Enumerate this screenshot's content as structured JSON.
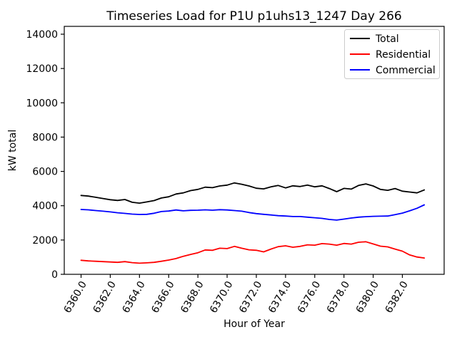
{
  "chart_data": {
    "type": "line",
    "title": "Timeseries Load for P1U p1uhs13_1247  Day 266",
    "xlabel": "Hour of Year",
    "ylabel": "kW total",
    "grid": false,
    "legend_position": "upper right",
    "xlim": [
      6358.85,
      6384.86
    ],
    "ylim": [
      0,
      14457
    ],
    "x_tick_values": [
      6360,
      6362,
      6364,
      6366,
      6368,
      6370,
      6372,
      6374,
      6376,
      6378,
      6380,
      6382
    ],
    "x_tick_labels": [
      "6360.0",
      "6362.0",
      "6364.0",
      "6366.0",
      "6368.0",
      "6370.0",
      "6372.0",
      "6374.0",
      "6376.0",
      "6378.0",
      "6380.0",
      "6382.0"
    ],
    "y_tick_values": [
      0,
      2000,
      4000,
      6000,
      8000,
      10000,
      12000,
      14000
    ],
    "y_tick_labels": [
      "0",
      "2000",
      "4000",
      "6000",
      "8000",
      "10000",
      "12000",
      "14000"
    ],
    "x": [
      6360.0,
      6360.5,
      6361.0,
      6361.5,
      6362.0,
      6362.5,
      6363.0,
      6363.5,
      6364.0,
      6364.5,
      6365.0,
      6365.5,
      6366.0,
      6366.5,
      6367.0,
      6367.5,
      6368.0,
      6368.5,
      6369.0,
      6369.5,
      6370.0,
      6370.5,
      6371.0,
      6371.5,
      6372.0,
      6372.5,
      6373.0,
      6373.5,
      6374.0,
      6374.5,
      6375.0,
      6375.5,
      6376.0,
      6376.5,
      6377.0,
      6377.5,
      6378.0,
      6378.5,
      6379.0,
      6379.5,
      6380.0,
      6380.5,
      6381.0,
      6381.5,
      6382.0,
      6382.5,
      6383.0,
      6383.5
    ],
    "series": [
      {
        "name": "Total",
        "color": "#000000",
        "values": [
          4600,
          4560,
          4490,
          4420,
          4350,
          4310,
          4360,
          4200,
          4150,
          4220,
          4300,
          4450,
          4520,
          4680,
          4750,
          4880,
          4950,
          5080,
          5050,
          5150,
          5200,
          5330,
          5250,
          5150,
          5020,
          4980,
          5100,
          5180,
          5040,
          5160,
          5120,
          5200,
          5100,
          5160,
          5000,
          4820,
          5010,
          4970,
          5180,
          5270,
          5150,
          4950,
          4900,
          5000,
          4850,
          4800,
          4750,
          4920
        ]
      },
      {
        "name": "Residential",
        "color": "#ff0000",
        "values": [
          820,
          780,
          760,
          740,
          720,
          700,
          740,
          680,
          650,
          670,
          700,
          760,
          830,
          920,
          1050,
          1160,
          1260,
          1420,
          1400,
          1520,
          1500,
          1630,
          1520,
          1430,
          1400,
          1310,
          1470,
          1610,
          1660,
          1580,
          1630,
          1720,
          1700,
          1790,
          1760,
          1700,
          1800,
          1760,
          1870,
          1900,
          1770,
          1640,
          1600,
          1470,
          1350,
          1130,
          1010,
          950
        ]
      },
      {
        "name": "Commercial",
        "color": "#0000ff",
        "values": [
          3780,
          3760,
          3720,
          3680,
          3640,
          3590,
          3550,
          3510,
          3490,
          3500,
          3560,
          3660,
          3690,
          3750,
          3700,
          3730,
          3740,
          3760,
          3740,
          3770,
          3750,
          3720,
          3680,
          3600,
          3540,
          3500,
          3460,
          3420,
          3400,
          3370,
          3370,
          3330,
          3300,
          3260,
          3200,
          3160,
          3220,
          3280,
          3330,
          3360,
          3380,
          3390,
          3400,
          3480,
          3570,
          3700,
          3850,
          4050
        ]
      }
    ]
  },
  "legend": {
    "entries": [
      "Total",
      "Residential",
      "Commercial"
    ],
    "frame_color": "#cccccc"
  },
  "colors": {
    "axes": "#000000",
    "background": "#ffffff"
  }
}
